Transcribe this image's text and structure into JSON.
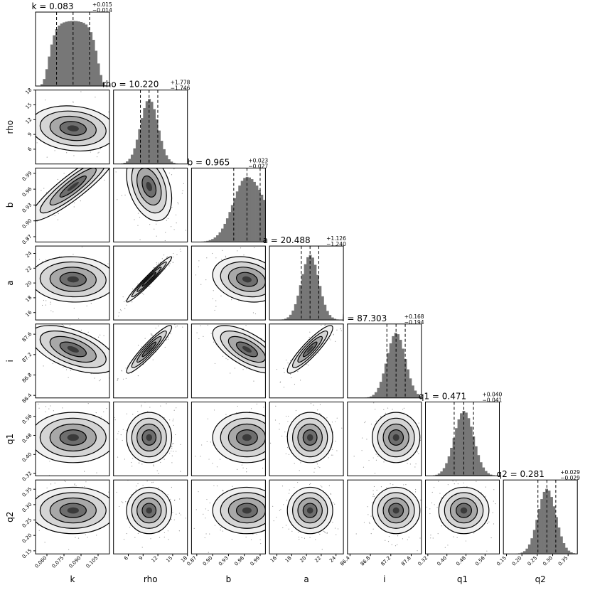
{
  "chart_data": {
    "type": "corner",
    "parameters": [
      {
        "name": "k",
        "label": "k",
        "median": "0.083",
        "plus": "+0.015",
        "minus": "−0.014",
        "m": 0.083,
        "sd": 0.0145,
        "range": [
          0.05,
          0.115
        ],
        "ticks": [
          "0.060",
          "0.075",
          "0.090",
          "0.105"
        ],
        "tickvals": [
          0.06,
          0.075,
          0.09,
          0.105
        ],
        "shape": "flat"
      },
      {
        "name": "rho",
        "label": "rho",
        "median": "10.220",
        "plus": "+1.778",
        "minus": "−1.746",
        "m": 10.22,
        "sd": 1.76,
        "range": [
          3,
          18
        ],
        "ticks": [
          "6",
          "9",
          "12",
          "15",
          "18"
        ],
        "tickvals": [
          6,
          9,
          12,
          15,
          18
        ],
        "shape": "normal"
      },
      {
        "name": "b",
        "label": "b",
        "median": "0.965",
        "plus": "+0.023",
        "minus": "−0.027",
        "m": 0.965,
        "sd": 0.025,
        "range": [
          0.86,
          1.0
        ],
        "ticks": [
          "0.87",
          "0.90",
          "0.93",
          "0.96",
          "0.99"
        ],
        "tickvals": [
          0.87,
          0.9,
          0.93,
          0.96,
          0.99
        ],
        "shape": "skew"
      },
      {
        "name": "a",
        "label": "a",
        "median": "20.488",
        "plus": "+1.126",
        "minus": "−1.240",
        "m": 20.488,
        "sd": 1.18,
        "range": [
          15,
          25
        ],
        "ticks": [
          "16",
          "18",
          "20",
          "22",
          "24"
        ],
        "tickvals": [
          16,
          18,
          20,
          22,
          24
        ],
        "shape": "normal"
      },
      {
        "name": "i",
        "label": "i",
        "median": "87.303",
        "plus": "+0.168",
        "minus": "−0.194",
        "m": 87.303,
        "sd": 0.18,
        "range": [
          86.35,
          87.8
        ],
        "ticks": [
          "86.4",
          "86.8",
          "87.2",
          "87.6"
        ],
        "tickvals": [
          86.4,
          86.8,
          87.2,
          87.6
        ],
        "shape": "normal"
      },
      {
        "name": "q1",
        "label": "q1",
        "median": "0.471",
        "plus": "+0.040",
        "minus": "−0.041",
        "m": 0.471,
        "sd": 0.0405,
        "range": [
          0.31,
          0.62
        ],
        "ticks": [
          "0.32",
          "0.40",
          "0.48",
          "0.56"
        ],
        "tickvals": [
          0.32,
          0.4,
          0.48,
          0.56
        ],
        "shape": "normal"
      },
      {
        "name": "q2",
        "label": "q2",
        "median": "0.281",
        "plus": "+0.029",
        "minus": "−0.029",
        "m": 0.281,
        "sd": 0.029,
        "range": [
          0.14,
          0.38
        ],
        "ticks": [
          "0.15",
          "0.20",
          "0.25",
          "0.30",
          "0.35"
        ],
        "tickvals": [
          0.15,
          0.2,
          0.25,
          0.3,
          0.35
        ],
        "shape": "normal"
      }
    ],
    "correlations": [
      {
        "pair": [
          "rho",
          "k"
        ],
        "rho": -0.15
      },
      {
        "pair": [
          "b",
          "k"
        ],
        "rho": 0.9
      },
      {
        "pair": [
          "b",
          "rho"
        ],
        "rho": -0.35
      },
      {
        "pair": [
          "a",
          "k"
        ],
        "rho": -0.05
      },
      {
        "pair": [
          "a",
          "rho"
        ],
        "rho": 0.97
      },
      {
        "pair": [
          "a",
          "b"
        ],
        "rho": -0.2
      },
      {
        "pair": [
          "i",
          "k"
        ],
        "rho": -0.55
      },
      {
        "pair": [
          "i",
          "rho"
        ],
        "rho": 0.93
      },
      {
        "pair": [
          "i",
          "b"
        ],
        "rho": -0.65
      },
      {
        "pair": [
          "i",
          "a"
        ],
        "rho": 0.9
      },
      {
        "pair": [
          "q1",
          "k"
        ],
        "rho": 0.0
      },
      {
        "pair": [
          "q2",
          "k"
        ],
        "rho": 0.0
      }
    ]
  }
}
